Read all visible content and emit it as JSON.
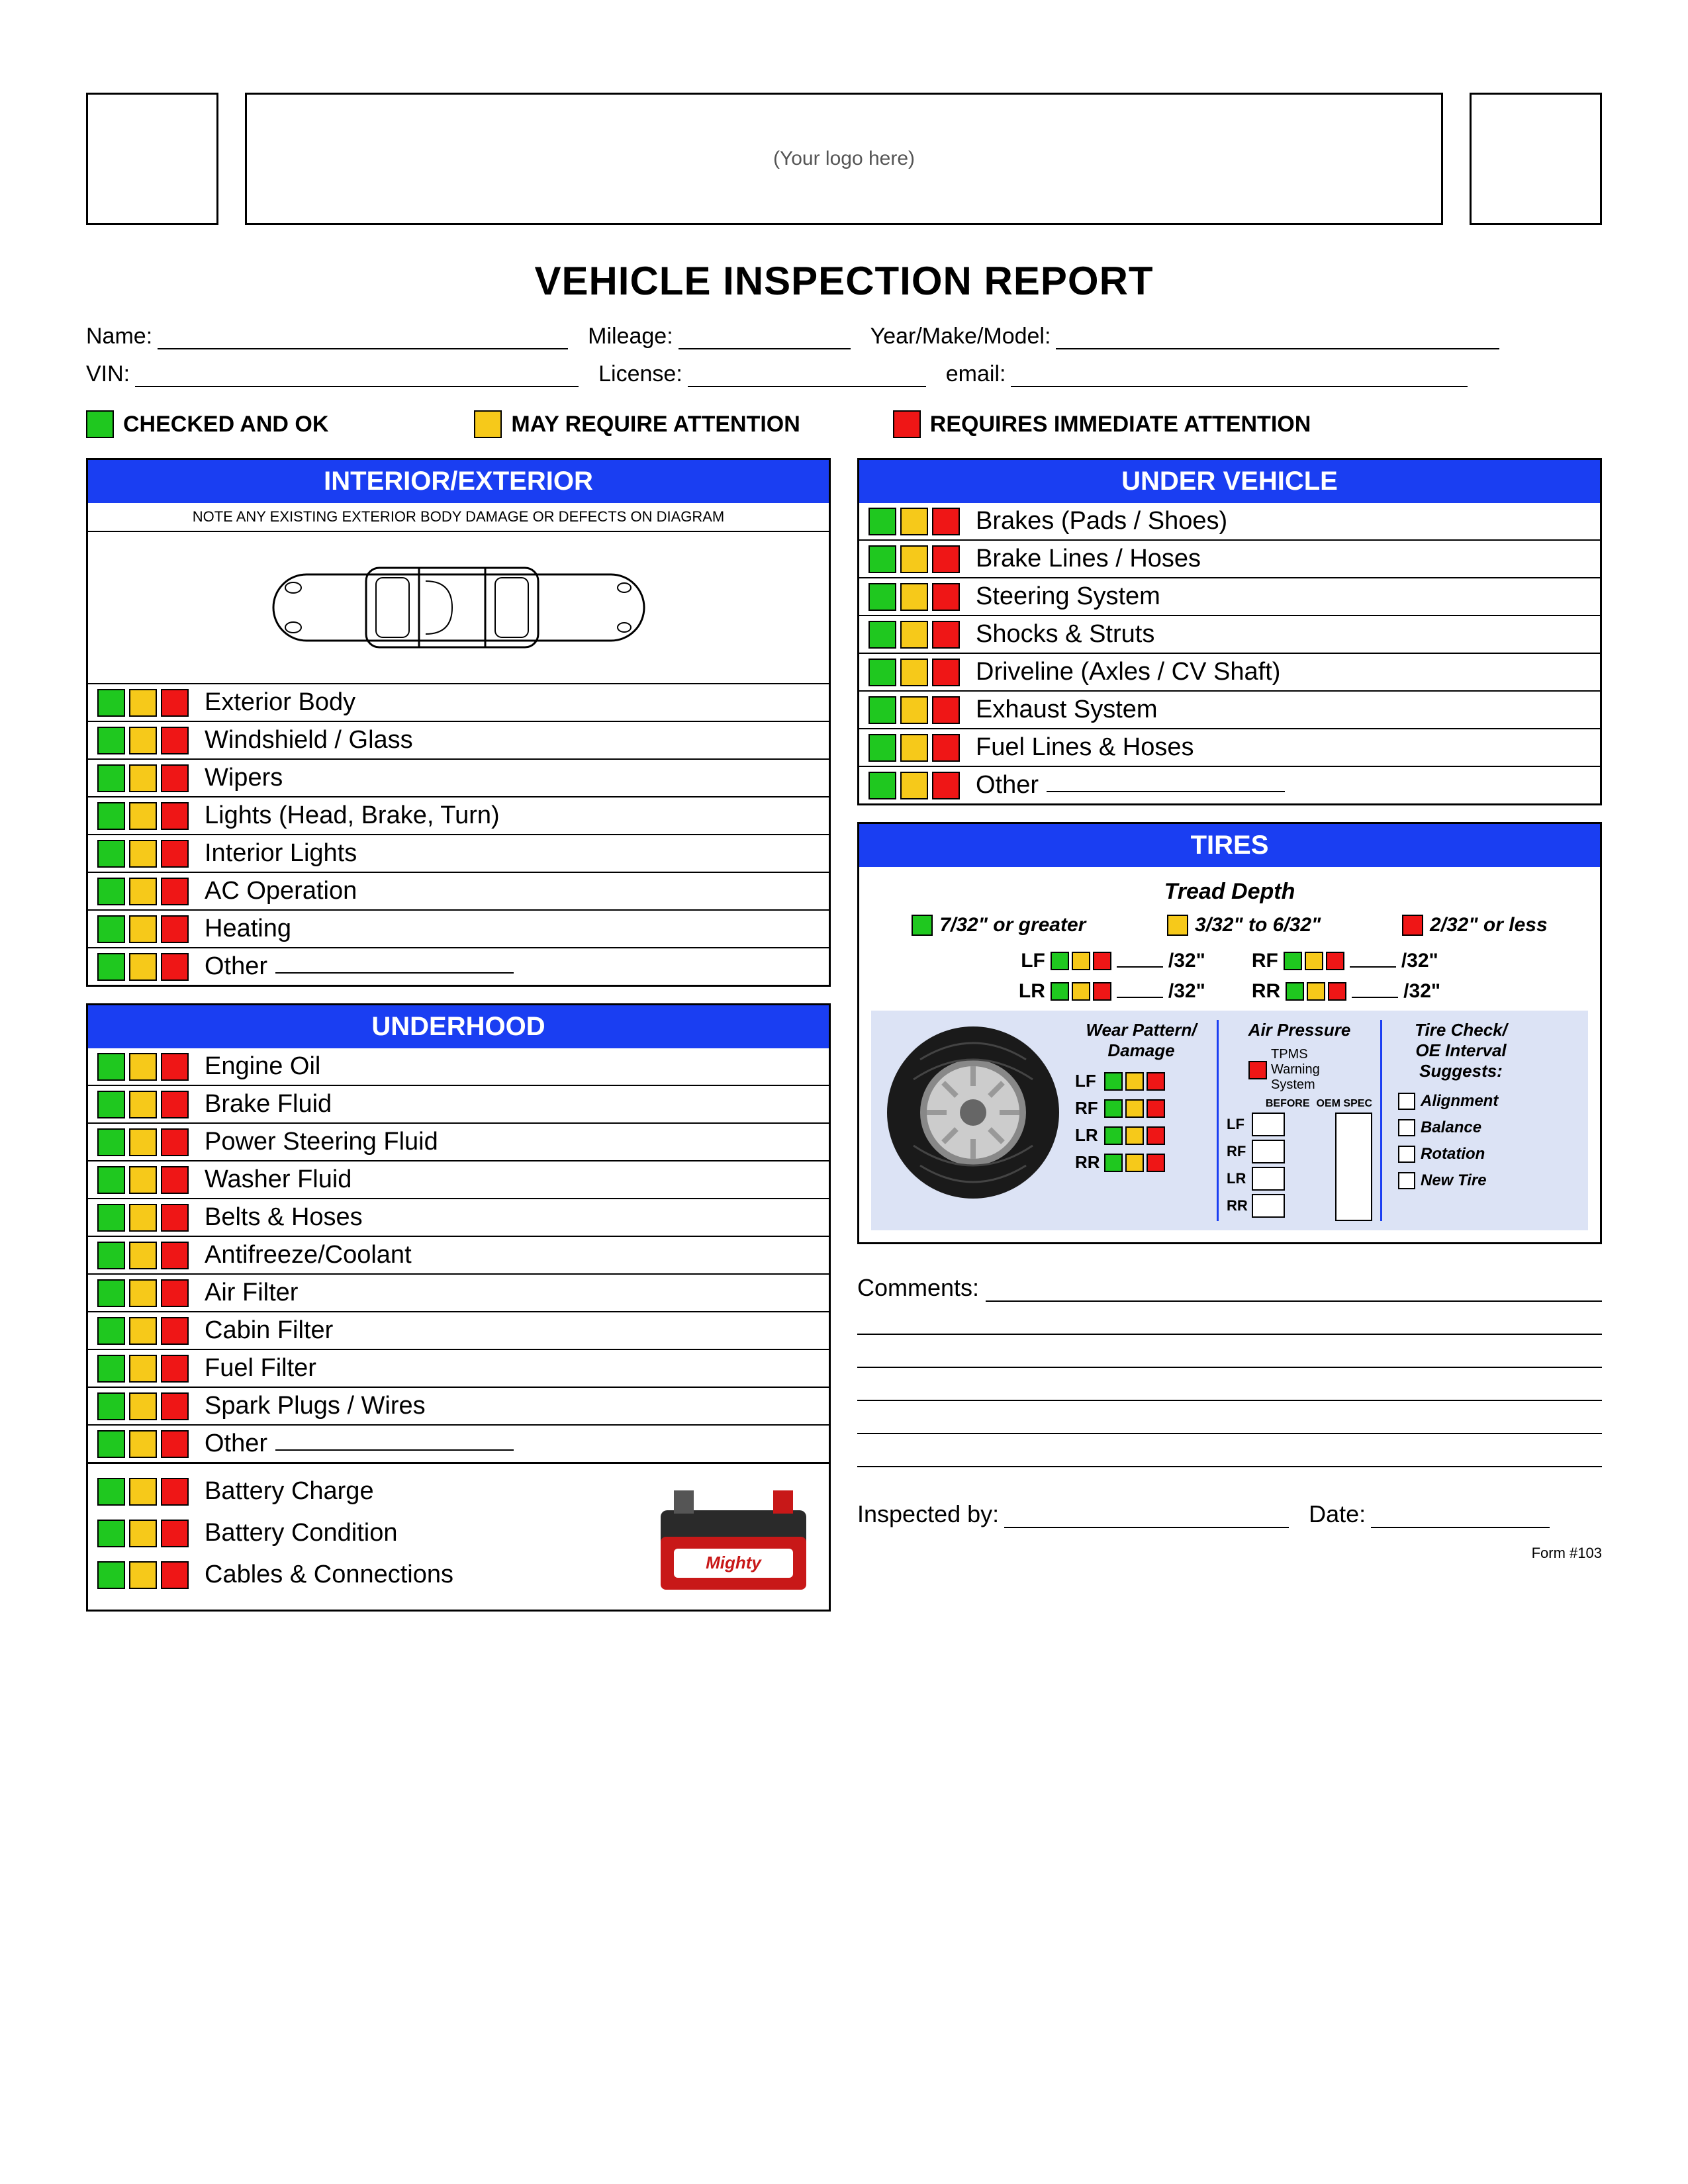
{
  "header": {
    "logo_placeholder": "(Your logo here)",
    "title": "VEHICLE INSPECTION REPORT"
  },
  "info": {
    "name_label": "Name:",
    "mileage_label": "Mileage:",
    "ymm_label": "Year/Make/Model:",
    "vin_label": "VIN:",
    "license_label": "License:",
    "email_label": "email:"
  },
  "legend": {
    "ok": "CHECKED AND OK",
    "attention": "MAY REQUIRE ATTENTION",
    "immediate": "REQUIRES IMMEDIATE ATTENTION"
  },
  "colors": {
    "green": "#1fc81f",
    "yellow": "#f6c91a",
    "red": "#ef1616",
    "blue": "#1a3ef2"
  },
  "interior": {
    "title": "INTERIOR/EXTERIOR",
    "note": "NOTE ANY EXISTING EXTERIOR BODY DAMAGE OR DEFECTS ON DIAGRAM",
    "items": [
      "Exterior Body",
      "Windshield / Glass",
      "Wipers",
      "Lights (Head, Brake, Turn)",
      "Interior Lights",
      "AC Operation",
      "Heating",
      "Other"
    ]
  },
  "underhood": {
    "title": "UNDERHOOD",
    "items": [
      "Engine Oil",
      "Brake Fluid",
      "Power Steering Fluid",
      "Washer Fluid",
      "Belts & Hoses",
      "Antifreeze/Coolant",
      "Air Filter",
      "Cabin Filter",
      "Fuel Filter",
      "Spark Plugs / Wires",
      "Other"
    ],
    "battery_items": [
      "Battery Charge",
      "Battery Condition",
      "Cables & Connections"
    ]
  },
  "undervehicle": {
    "title": "UNDER VEHICLE",
    "items": [
      "Brakes (Pads / Shoes)",
      "Brake Lines / Hoses",
      "Steering System",
      "Shocks & Struts",
      "Driveline (Axles / CV Shaft)",
      "Exhaust System",
      "Fuel Lines & Hoses",
      "Other"
    ]
  },
  "tires": {
    "title": "TIRES",
    "tread_title": "Tread Depth",
    "tread_legend": {
      "green": "7/32\" or greater",
      "yellow": "3/32\" to 6/32\"",
      "red": "2/32\" or less"
    },
    "positions": [
      "LF",
      "RF",
      "LR",
      "RR"
    ],
    "unit": "/32\"",
    "wear_title": "Wear Pattern/\nDamage",
    "air_title": "Air Pressure",
    "tpms": "TPMS Warning System",
    "before": "BEFORE",
    "oem": "OEM SPEC",
    "suggest_title": "Tire Check/\nOE Interval Suggests:",
    "suggests": [
      "Alignment",
      "Balance",
      "Rotation",
      "New Tire"
    ]
  },
  "footer": {
    "comments_label": "Comments:",
    "inspected_label": "Inspected by:",
    "date_label": "Date:",
    "form_num": "Form #103"
  }
}
